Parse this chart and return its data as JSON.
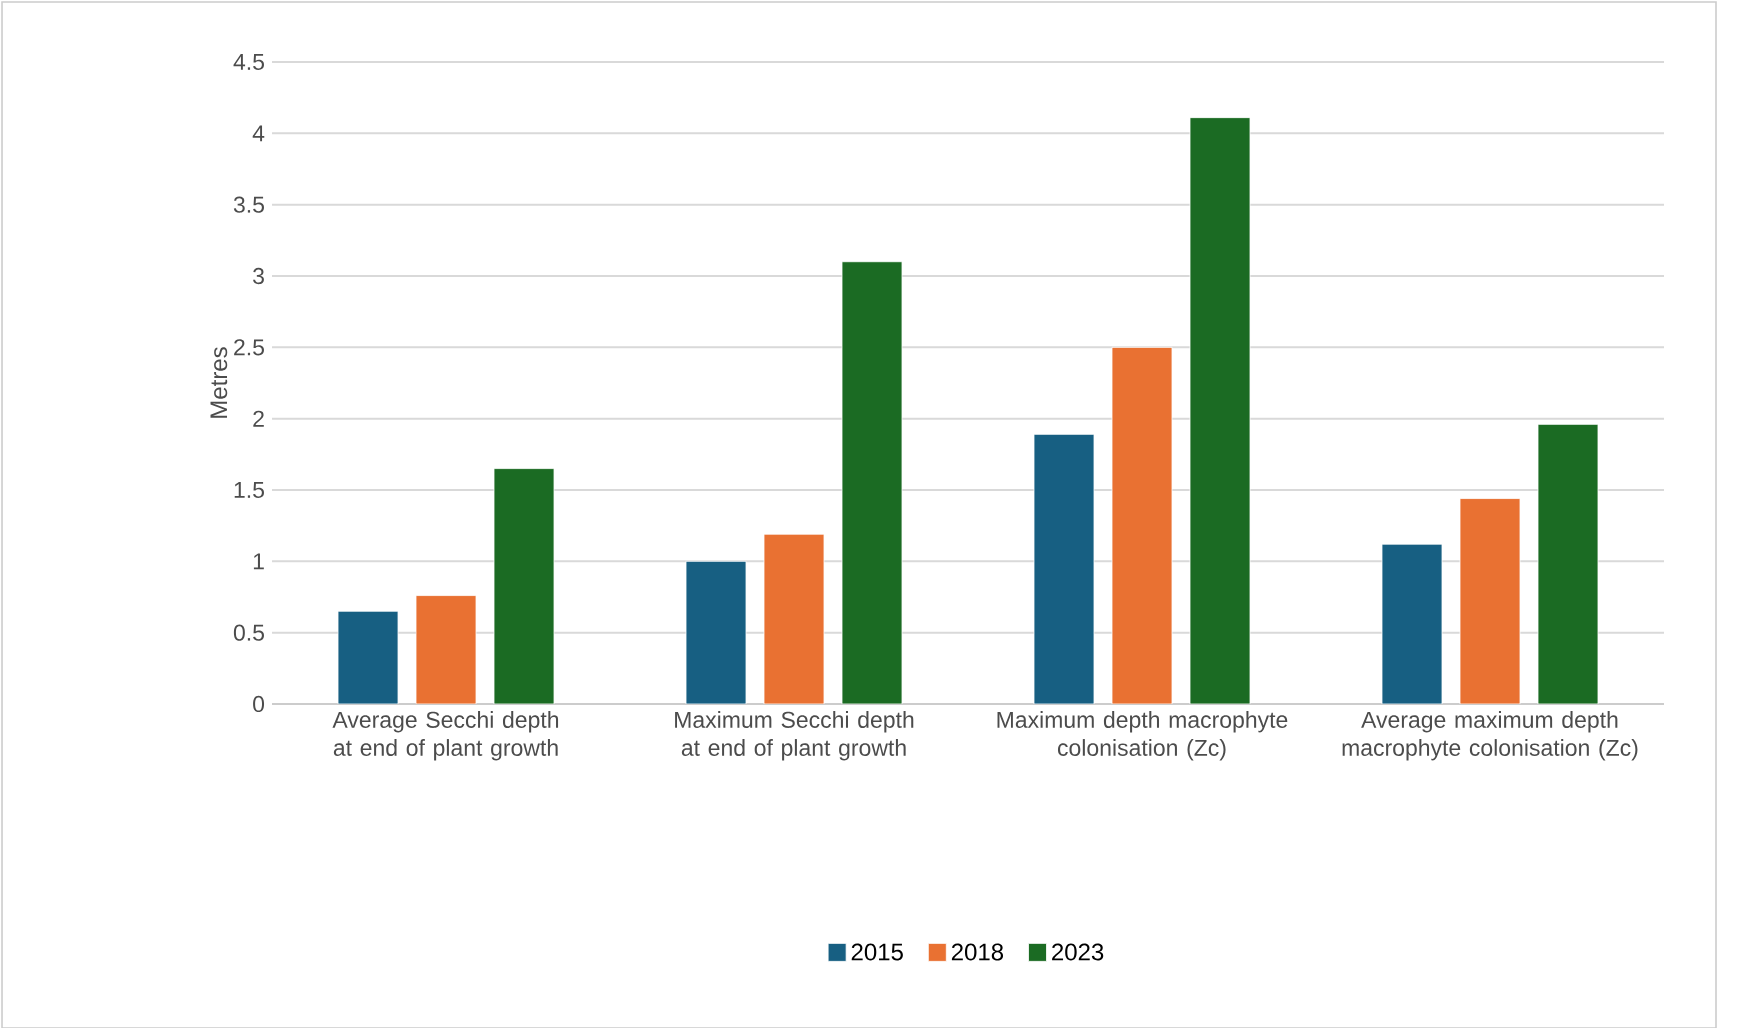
{
  "chart_data": {
    "type": "bar",
    "ylabel": "Metres",
    "categories": [
      "Average Secchi depth at end of plant growth",
      "Maximum Secchi depth at end of plant growth",
      "Maximum depth macrophyte colonisation (Zc)",
      "Average maximum depth macrophyte colonisation (Zc)"
    ],
    "series": [
      {
        "name": "2015",
        "color": "#175f82",
        "values": [
          0.65,
          1.0,
          1.89,
          1.12
        ]
      },
      {
        "name": "2018",
        "color": "#e97132",
        "values": [
          0.76,
          1.19,
          2.5,
          1.44
        ]
      },
      {
        "name": "2023",
        "color": "#1b6b23",
        "values": [
          1.65,
          3.1,
          4.11,
          1.96
        ]
      }
    ],
    "ylim": [
      0,
      4.5
    ],
    "yticks": [
      0,
      0.5,
      1,
      1.5,
      2,
      2.5,
      3,
      3.5,
      4,
      4.5
    ],
    "grid": "y",
    "legend": "bottom"
  }
}
